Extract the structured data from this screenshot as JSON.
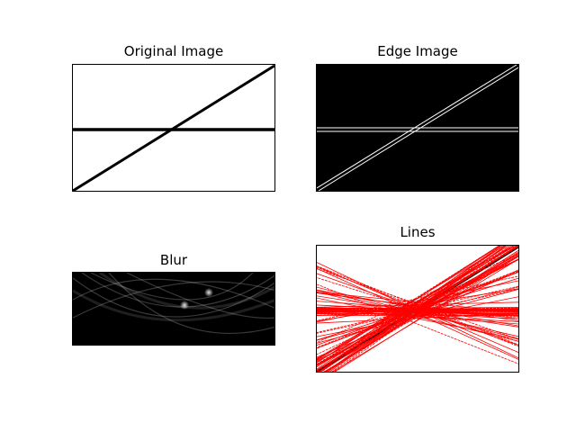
{
  "figure": {
    "background": "#ffffff"
  },
  "chart_data": [
    {
      "type": "image",
      "title": "Original Image",
      "description_colors": {
        "background": "#ffffff",
        "ink": "#000000"
      },
      "content": [
        "horizontal line",
        "diagonal line"
      ]
    },
    {
      "type": "image",
      "title": "Edge Image",
      "description_colors": {
        "background": "#000000",
        "ink": "#ffffff"
      },
      "content": [
        "edge of horizontal line",
        "edge of diagonal line"
      ]
    },
    {
      "type": "heatmap",
      "title": "Blur",
      "description_colors": {
        "background": "#000000",
        "ink": "#ffffff"
      },
      "content": [
        "hough accumulator curves"
      ]
    },
    {
      "type": "image",
      "title": "Lines",
      "description_colors": {
        "background": "#ffffff",
        "lines": "#ff0000",
        "ink": "#000000"
      },
      "content": [
        "detected lines overlay"
      ]
    }
  ]
}
